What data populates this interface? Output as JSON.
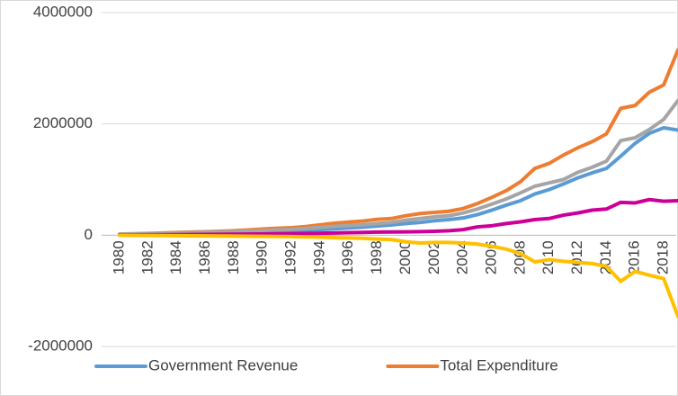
{
  "chart_data": {
    "type": "line",
    "categories": [
      1980,
      null,
      1982,
      null,
      1984,
      null,
      1986,
      null,
      1988,
      null,
      1990,
      null,
      1992,
      null,
      1994,
      null,
      1996,
      null,
      1998,
      null,
      2000,
      null,
      2002,
      null,
      2004,
      null,
      2006,
      null,
      2008,
      null,
      2010,
      null,
      2012,
      null,
      2014,
      null,
      2016,
      null,
      2018,
      null
    ],
    "series": [
      {
        "name": "Government Revenue",
        "color": "#5b9bd5",
        "values": [
          15000,
          18000,
          22000,
          26000,
          30000,
          35000,
          40000,
          46000,
          52000,
          58000,
          65000,
          72000,
          80000,
          90000,
          100000,
          115000,
          130000,
          145000,
          165000,
          185000,
          210000,
          230000,
          260000,
          280000,
          310000,
          370000,
          450000,
          540000,
          620000,
          740000,
          820000,
          920000,
          1030000,
          1120000,
          1200000,
          1420000,
          1650000,
          1830000,
          1930000,
          1890000
        ]
      },
      {
        "name": "Total Expenditure",
        "color": "#ed7d31",
        "values": [
          20000,
          25000,
          32000,
          40000,
          48000,
          55000,
          62000,
          70000,
          80000,
          95000,
          110000,
          125000,
          135000,
          155000,
          185000,
          215000,
          235000,
          255000,
          285000,
          300000,
          350000,
          390000,
          410000,
          430000,
          480000,
          570000,
          680000,
          800000,
          960000,
          1200000,
          1290000,
          1440000,
          1570000,
          1680000,
          1820000,
          2280000,
          2330000,
          2570000,
          2700000,
          3330000
        ]
      },
      {
        "color": "#a5a5a5",
        "values": [
          18000,
          22000,
          27000,
          33000,
          40000,
          46000,
          52000,
          58000,
          65000,
          75000,
          85000,
          95000,
          105000,
          120000,
          140000,
          160000,
          175000,
          190000,
          210000,
          230000,
          270000,
          300000,
          330000,
          350000,
          400000,
          470000,
          560000,
          650000,
          760000,
          880000,
          940000,
          1000000,
          1130000,
          1220000,
          1330000,
          1700000,
          1750000,
          1900000,
          2080000,
          2420000
        ]
      },
      {
        "color": "#cc0099",
        "values": [
          5000,
          6000,
          7000,
          8000,
          10000,
          12000,
          14000,
          16000,
          18000,
          20000,
          22000,
          25000,
          28000,
          32000,
          36000,
          40000,
          45000,
          50000,
          55000,
          58000,
          60000,
          65000,
          70000,
          80000,
          100000,
          150000,
          170000,
          210000,
          240000,
          280000,
          300000,
          360000,
          400000,
          450000,
          470000,
          590000,
          580000,
          640000,
          610000,
          620000
        ]
      },
      {
        "color": "#ffc000",
        "values": [
          0,
          -2000,
          -4000,
          -6000,
          -8000,
          -10000,
          -12000,
          -14000,
          -16000,
          -18000,
          -20000,
          -22000,
          -25000,
          -30000,
          -35000,
          -45000,
          -50000,
          -55000,
          -70000,
          -80000,
          -120000,
          -140000,
          -130000,
          -130000,
          -140000,
          -160000,
          -200000,
          -250000,
          -330000,
          -480000,
          -440000,
          -470000,
          -490000,
          -510000,
          -560000,
          -830000,
          -650000,
          -720000,
          -780000,
          -1460000
        ]
      }
    ],
    "ylim": [
      -2000000,
      4000000
    ],
    "yticks": [
      -2000000,
      0,
      2000000,
      4000000
    ],
    "grid": true,
    "legend": "bottom"
  }
}
